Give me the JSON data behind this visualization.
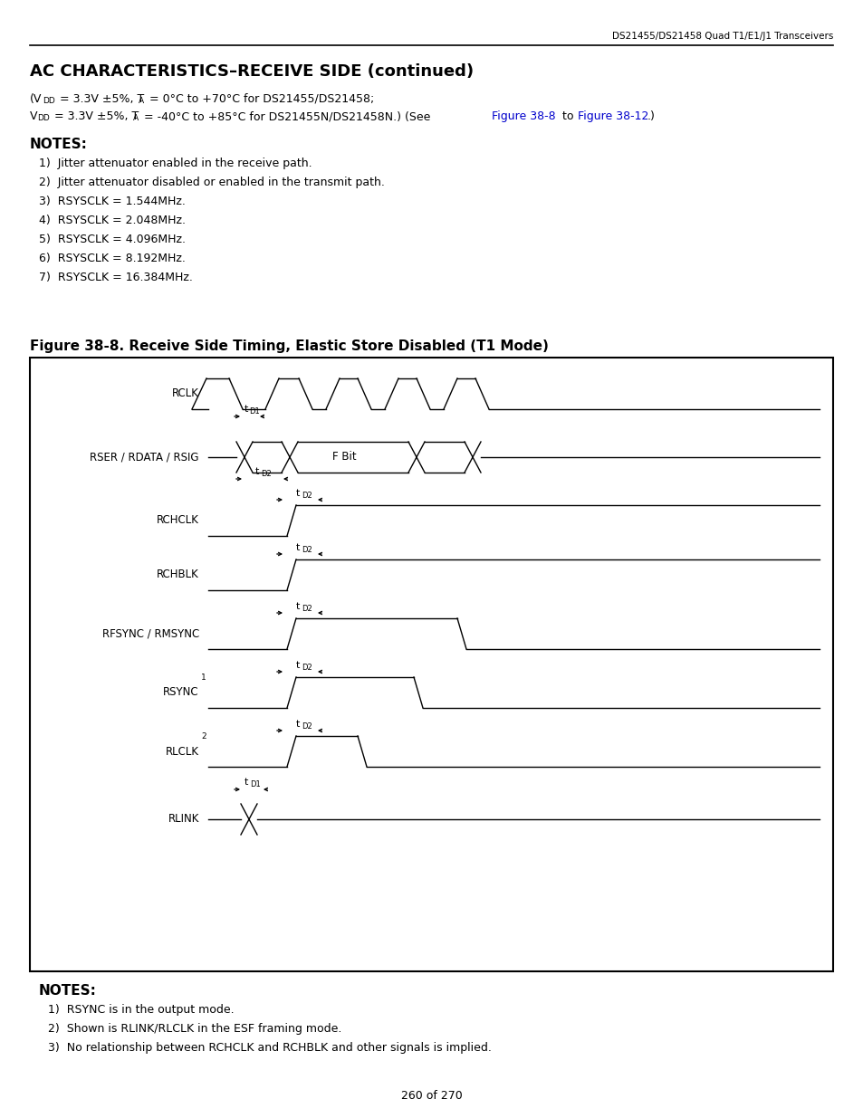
{
  "page_header": "DS21455/DS21458 Quad T1/E1/J1 Transceivers",
  "title": "AC CHARACTERISTICS–RECEIVE SIDE (continued)",
  "notes_title": "NOTES:",
  "notes": [
    "Jitter attenuator enabled in the receive path.",
    "Jitter attenuator disabled or enabled in the transmit path.",
    "RSYSCLK = 1.544MHz.",
    "RSYSCLK = 2.048MHz.",
    "RSYSCLK = 4.096MHz.",
    "RSYSCLK = 8.192MHz.",
    "RSYSCLK = 16.384MHz."
  ],
  "fig_title": "Figure 38-8. Receive Side Timing, Elastic Store Disabled (T1 Mode)",
  "signals": [
    "RCLK",
    "RSER / RDATA / RSIG",
    "RCHCLK",
    "RCHBLK",
    "RFSYNC / RMSYNC",
    "RSYNC",
    "RLCLK",
    "RLINK"
  ],
  "signal_superscripts": [
    "",
    "",
    "",
    "",
    "",
    "1",
    "2",
    ""
  ],
  "bottom_notes_title": "NOTES:",
  "bottom_notes": [
    "RSYNC is in the output mode.",
    "Shown is RLINK/RLCLK in the ESF framing mode.",
    "No relationship between RCHCLK and RCHBLK and other signals is implied."
  ],
  "page_footer": "260 of 270",
  "bg_color": "#ffffff"
}
